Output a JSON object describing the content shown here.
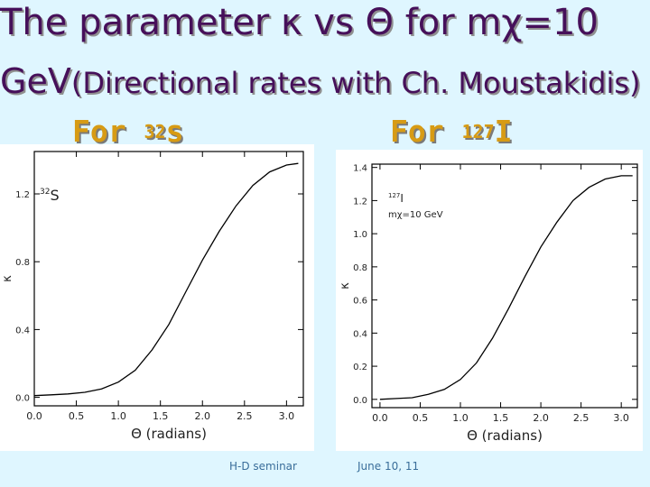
{
  "slide": {
    "title_line1": "The parameter κ vs Θ for mχ=10",
    "title_line2_main": "GeV",
    "title_line2_paren": "(Directional rates with Ch. Moustakidis)",
    "heading_left_prefix": "For ",
    "heading_left_sup": "32",
    "heading_left_suffix": "s",
    "heading_right_prefix": "For ",
    "heading_right_sup": "127",
    "heading_right_suffix": "I",
    "footer_left": "H-D seminar",
    "footer_right": "June 10, 11"
  },
  "colors": {
    "title": "#46105a",
    "heading": "#d79b14",
    "background": "#dff6ff",
    "curve": "#000000"
  },
  "chart_data": [
    {
      "type": "line",
      "title": "",
      "annotation": "32S",
      "xlabel": "Θ (radians)",
      "ylabel": "κ",
      "xlim": [
        0,
        3.2
      ],
      "ylim": [
        -0.05,
        1.45
      ],
      "x_ticks": [
        0.0,
        0.5,
        1.0,
        1.5,
        2.0,
        2.5,
        3.0
      ],
      "x_tick_labels": [
        "0.0",
        "0.5",
        "1.0",
        "1.5",
        "2.0",
        "2.5",
        "3.0"
      ],
      "y_ticks": [
        0.0,
        0.4,
        0.8,
        1.2
      ],
      "y_tick_labels": [
        "0.0",
        "0.4",
        "0.8",
        "1.2"
      ],
      "grid": false,
      "series": [
        {
          "x": [
            0.0,
            0.2,
            0.4,
            0.6,
            0.8,
            1.0,
            1.2,
            1.4,
            1.6,
            1.8,
            2.0,
            2.2,
            2.4,
            2.6,
            2.8,
            3.0,
            3.14
          ],
          "values": [
            0.01,
            0.015,
            0.02,
            0.03,
            0.05,
            0.09,
            0.16,
            0.28,
            0.43,
            0.62,
            0.81,
            0.98,
            1.13,
            1.25,
            1.33,
            1.37,
            1.38
          ]
        }
      ]
    },
    {
      "type": "line",
      "title": "",
      "annotation": "127I  mχ=10 GeV",
      "xlabel": "Θ (radians)",
      "ylabel": "κ",
      "xlim": [
        -0.1,
        3.2
      ],
      "ylim": [
        -0.05,
        1.42
      ],
      "x_ticks": [
        0.0,
        0.5,
        1.0,
        1.5,
        2.0,
        2.5,
        3.0
      ],
      "x_tick_labels": [
        "0.0",
        "0.5",
        "1.0",
        "1.5",
        "2.0",
        "2.5",
        "3.0"
      ],
      "y_ticks": [
        0.0,
        0.2,
        0.4,
        0.6,
        0.8,
        1.0,
        1.2,
        1.4
      ],
      "y_tick_labels": [
        "0.0",
        "0.2",
        "0.4",
        "0.6",
        "0.8",
        "1.0",
        "1.2",
        "1.4"
      ],
      "grid": false,
      "series": [
        {
          "x": [
            0.0,
            0.2,
            0.4,
            0.6,
            0.8,
            1.0,
            1.2,
            1.4,
            1.6,
            1.8,
            2.0,
            2.2,
            2.4,
            2.6,
            2.8,
            3.0,
            3.14
          ],
          "values": [
            0.0,
            0.005,
            0.01,
            0.03,
            0.06,
            0.12,
            0.22,
            0.37,
            0.55,
            0.74,
            0.92,
            1.07,
            1.2,
            1.28,
            1.33,
            1.35,
            1.35
          ]
        }
      ]
    }
  ]
}
